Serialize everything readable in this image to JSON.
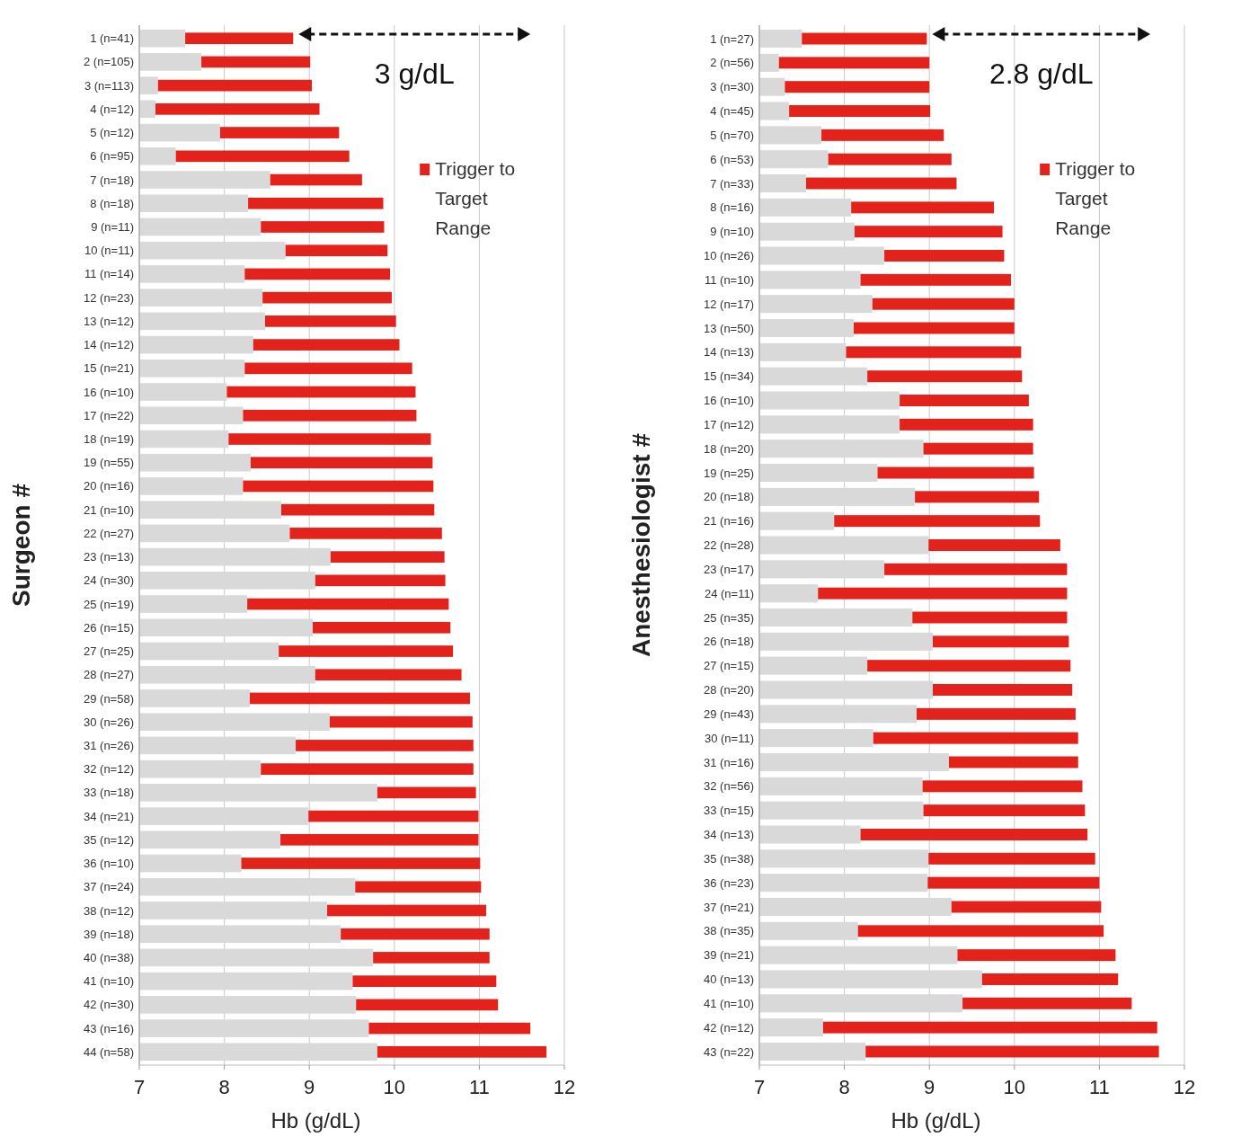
{
  "chart_data": [
    {
      "type": "bar",
      "orientation": "horizontal",
      "xlabel": "Hb (g/dL)",
      "ylabel": "Surgeon #",
      "annotations": [
        "3 g/dL"
      ],
      "legend": "top right",
      "grid": "x",
      "xlim": [
        7,
        12
      ],
      "xticks": [
        7,
        8,
        9,
        10,
        11,
        12
      ],
      "categories": [
        "1 (n=41)",
        "2 (n=105)",
        "3 (n=113)",
        "4 (n=12)",
        "5 (n=12)",
        "6 (n=95)",
        "7 (n=18)",
        "8 (n=18)",
        "9 (n=11)",
        "10 (n=11)",
        "11 (n=14)",
        "12 (n=23)",
        "13 (n=12)",
        "14 (n=12)",
        "15 (n=21)",
        "16 (n=10)",
        "17 (n=22)",
        "18 (n=19)",
        "19 (n=55)",
        "20 (n=16)",
        "21 (n=10)",
        "22 (n=27)",
        "23 (n=13)",
        "24 (n=30)",
        "25 (n=19)",
        "26 (n=15)",
        "27 (n=25)",
        "28 (n=27)",
        "29 (n=58)",
        "30 (n=26)",
        "31 (n=26)",
        "32 (n=12)",
        "33 (n=18)",
        "34 (n=21)",
        "35 (n=12)",
        "36 (n=10)",
        "37 (n=24)",
        "38 (n=12)",
        "39 (n=18)",
        "40 (n=38)",
        "41 (n=10)",
        "42 (n=30)",
        "43 (n=16)",
        "44 (n=58)"
      ],
      "series": [
        {
          "color": "#d9d9d9",
          "values": [
            7.54,
            7.73,
            7.22,
            7.19,
            7.95,
            7.43,
            8.54,
            8.28,
            8.43,
            8.72,
            8.24,
            8.45,
            8.48,
            8.34,
            8.24,
            8.03,
            8.22,
            8.05,
            8.31,
            8.22,
            8.67,
            8.77,
            9.25,
            9.07,
            8.27,
            9.04,
            8.64,
            9.07,
            8.3,
            9.24,
            8.84,
            8.43,
            9.8,
            8.99,
            8.66,
            8.2,
            9.54,
            9.21,
            9.37,
            9.75,
            9.51,
            9.55,
            9.7,
            9.8
          ]
        },
        {
          "name": "Trigger to Target Range",
          "color": "#e3231b",
          "base": [
            7.54,
            7.73,
            7.22,
            7.19,
            7.95,
            7.43,
            8.54,
            8.28,
            8.43,
            8.72,
            8.24,
            8.45,
            8.48,
            8.34,
            8.24,
            8.03,
            8.22,
            8.05,
            8.31,
            8.22,
            8.67,
            8.77,
            9.25,
            9.07,
            8.27,
            9.04,
            8.64,
            9.07,
            8.3,
            9.24,
            8.84,
            8.43,
            9.8,
            8.99,
            8.66,
            8.2,
            9.54,
            9.21,
            9.37,
            9.75,
            9.51,
            9.55,
            9.7,
            9.8
          ],
          "values": [
            1.27,
            1.28,
            1.81,
            1.93,
            1.4,
            2.04,
            1.08,
            1.59,
            1.45,
            1.2,
            1.71,
            1.52,
            1.54,
            1.72,
            1.97,
            2.22,
            2.04,
            2.38,
            2.14,
            2.24,
            1.8,
            1.79,
            1.34,
            1.53,
            2.37,
            1.62,
            2.05,
            1.72,
            2.59,
            1.68,
            2.09,
            2.5,
            1.16,
            2.0,
            2.33,
            2.81,
            1.48,
            1.87,
            1.75,
            1.37,
            1.69,
            1.67,
            1.9,
            1.99
          ]
        }
      ]
    },
    {
      "type": "bar",
      "orientation": "horizontal",
      "xlabel": "Hb (g/dL)",
      "ylabel": "Anesthesiologist #",
      "annotations": [
        "2.8 g/dL"
      ],
      "legend": "top right",
      "grid": "x",
      "xlim": [
        7,
        12
      ],
      "xticks": [
        7,
        8,
        9,
        10,
        11,
        12
      ],
      "categories": [
        "1 (n=27)",
        "2 (n=56)",
        "3 (n=30)",
        "4 (n=45)",
        "5 (n=70)",
        "6 (n=53)",
        "7 (n=33)",
        "8 (n=16)",
        "9 (n=10)",
        "10 (n=26)",
        "11 (n=10)",
        "12 (n=17)",
        "13 (n=50)",
        "14 (n=13)",
        "15 (n=34)",
        "16 (n=10)",
        "17 (n=12)",
        "18 (n=20)",
        "19 (n=25)",
        "20 (n=18)",
        "21 (n=16)",
        "22 (n=28)",
        "23 (n=17)",
        "24 (n=11)",
        "25 (n=35)",
        "26 (n=18)",
        "27 (n=15)",
        "28 (n=20)",
        "29 (n=43)",
        "30 (n=11)",
        "31 (n=16)",
        "32 (n=56)",
        "33 (n=15)",
        "34 (n=13)",
        "35 (n=38)",
        "36 (n=23)",
        "37 (n=21)",
        "38 (n=35)",
        "39 (n=21)",
        "40 (n=13)",
        "41 (n=10)",
        "42 (n=12)",
        "43 (n=22)"
      ],
      "series": [
        {
          "color": "#d9d9d9",
          "values": [
            7.5,
            7.23,
            7.3,
            7.35,
            7.73,
            7.81,
            7.55,
            8.08,
            8.12,
            8.47,
            8.19,
            8.33,
            8.11,
            8.02,
            8.27,
            8.65,
            8.65,
            8.93,
            8.39,
            8.83,
            7.88,
            8.99,
            8.47,
            7.69,
            8.8,
            9.04,
            8.27,
            9.04,
            8.85,
            8.34,
            9.23,
            8.92,
            8.93,
            8.19,
            8.99,
            8.98,
            9.26,
            8.16,
            9.33,
            9.62,
            9.39,
            7.75,
            8.25
          ]
        },
        {
          "name": "Trigger to Target Range",
          "color": "#e3231b",
          "base": [
            7.5,
            7.23,
            7.3,
            7.35,
            7.73,
            7.81,
            7.55,
            8.08,
            8.12,
            8.47,
            8.19,
            8.33,
            8.11,
            8.02,
            8.27,
            8.65,
            8.65,
            8.93,
            8.39,
            8.83,
            7.88,
            8.99,
            8.47,
            7.69,
            8.8,
            9.04,
            8.27,
            9.04,
            8.85,
            8.34,
            9.23,
            8.92,
            8.93,
            8.19,
            8.99,
            8.98,
            9.26,
            8.16,
            9.33,
            9.62,
            9.39,
            7.75,
            8.25
          ],
          "values": [
            1.47,
            1.77,
            1.7,
            1.66,
            1.44,
            1.45,
            1.77,
            1.68,
            1.74,
            1.41,
            1.77,
            1.67,
            1.89,
            2.06,
            1.82,
            1.52,
            1.57,
            1.29,
            1.84,
            1.46,
            2.42,
            1.55,
            2.15,
            2.93,
            1.82,
            1.6,
            2.39,
            1.64,
            1.87,
            2.41,
            1.52,
            1.88,
            1.9,
            2.67,
            1.96,
            2.02,
            1.76,
            2.89,
            1.86,
            1.6,
            1.99,
            3.93,
            3.45
          ]
        }
      ]
    }
  ]
}
